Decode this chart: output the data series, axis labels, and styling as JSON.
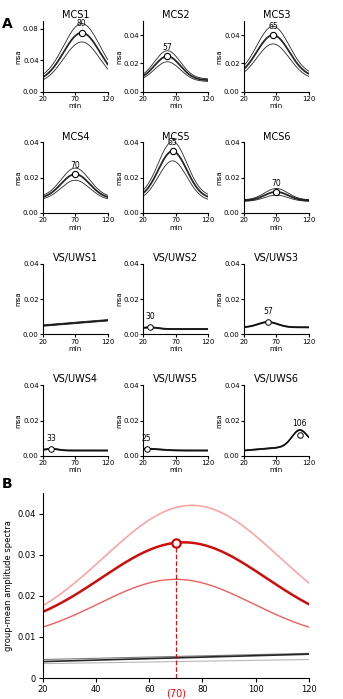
{
  "xmin": 20,
  "xmax": 120,
  "xlabel": "min",
  "ylabel_small": "msa",
  "ylabel_large": "group-mean amplitude spectra",
  "mcs_subjects": [
    "MCS1",
    "MCS2",
    "MCS3",
    "MCS4",
    "MCS5",
    "MCS6"
  ],
  "vsuws_subjects": [
    "VS/UWS1",
    "VS/UWS2",
    "VS/UWS3",
    "VS/UWS4",
    "VS/UWS5",
    "VS/UWS6"
  ],
  "mcs_peaks": [
    80,
    57,
    65,
    70,
    65,
    70
  ],
  "vsuws_peaks": [
    null,
    30,
    57,
    33,
    25,
    106
  ],
  "mcs_ylims": [
    0.09,
    0.05,
    0.05,
    0.04,
    0.04,
    0.04
  ],
  "mcs_peak_vals": [
    0.075,
    0.025,
    0.04,
    0.022,
    0.035,
    0.012
  ],
  "vsuws_peak_vals": [
    null,
    0.004,
    0.007,
    0.004,
    0.004,
    0.012
  ],
  "mcs_base": [
    0.012,
    0.008,
    0.01,
    0.008,
    0.008,
    0.007
  ],
  "vsuws_base": [
    0.005,
    0.003,
    0.004,
    0.003,
    0.003,
    0.003
  ],
  "mcs_sigma": [
    28,
    20,
    25,
    22,
    22,
    18
  ],
  "vsuws_sigma": [
    15,
    12,
    15,
    10,
    20,
    12
  ],
  "panel_b_yticks": [
    0,
    0.01,
    0.02,
    0.03,
    0.04
  ],
  "panel_b_xticks": [
    20,
    40,
    60,
    80,
    100,
    120
  ],
  "color_red_dark": "#cc0000",
  "color_red_mid": "#ee5555",
  "color_red_light": "#ff9999",
  "color_black_dark": "#111111",
  "color_black_mid": "#666666",
  "color_black_light": "#aaaaaa"
}
